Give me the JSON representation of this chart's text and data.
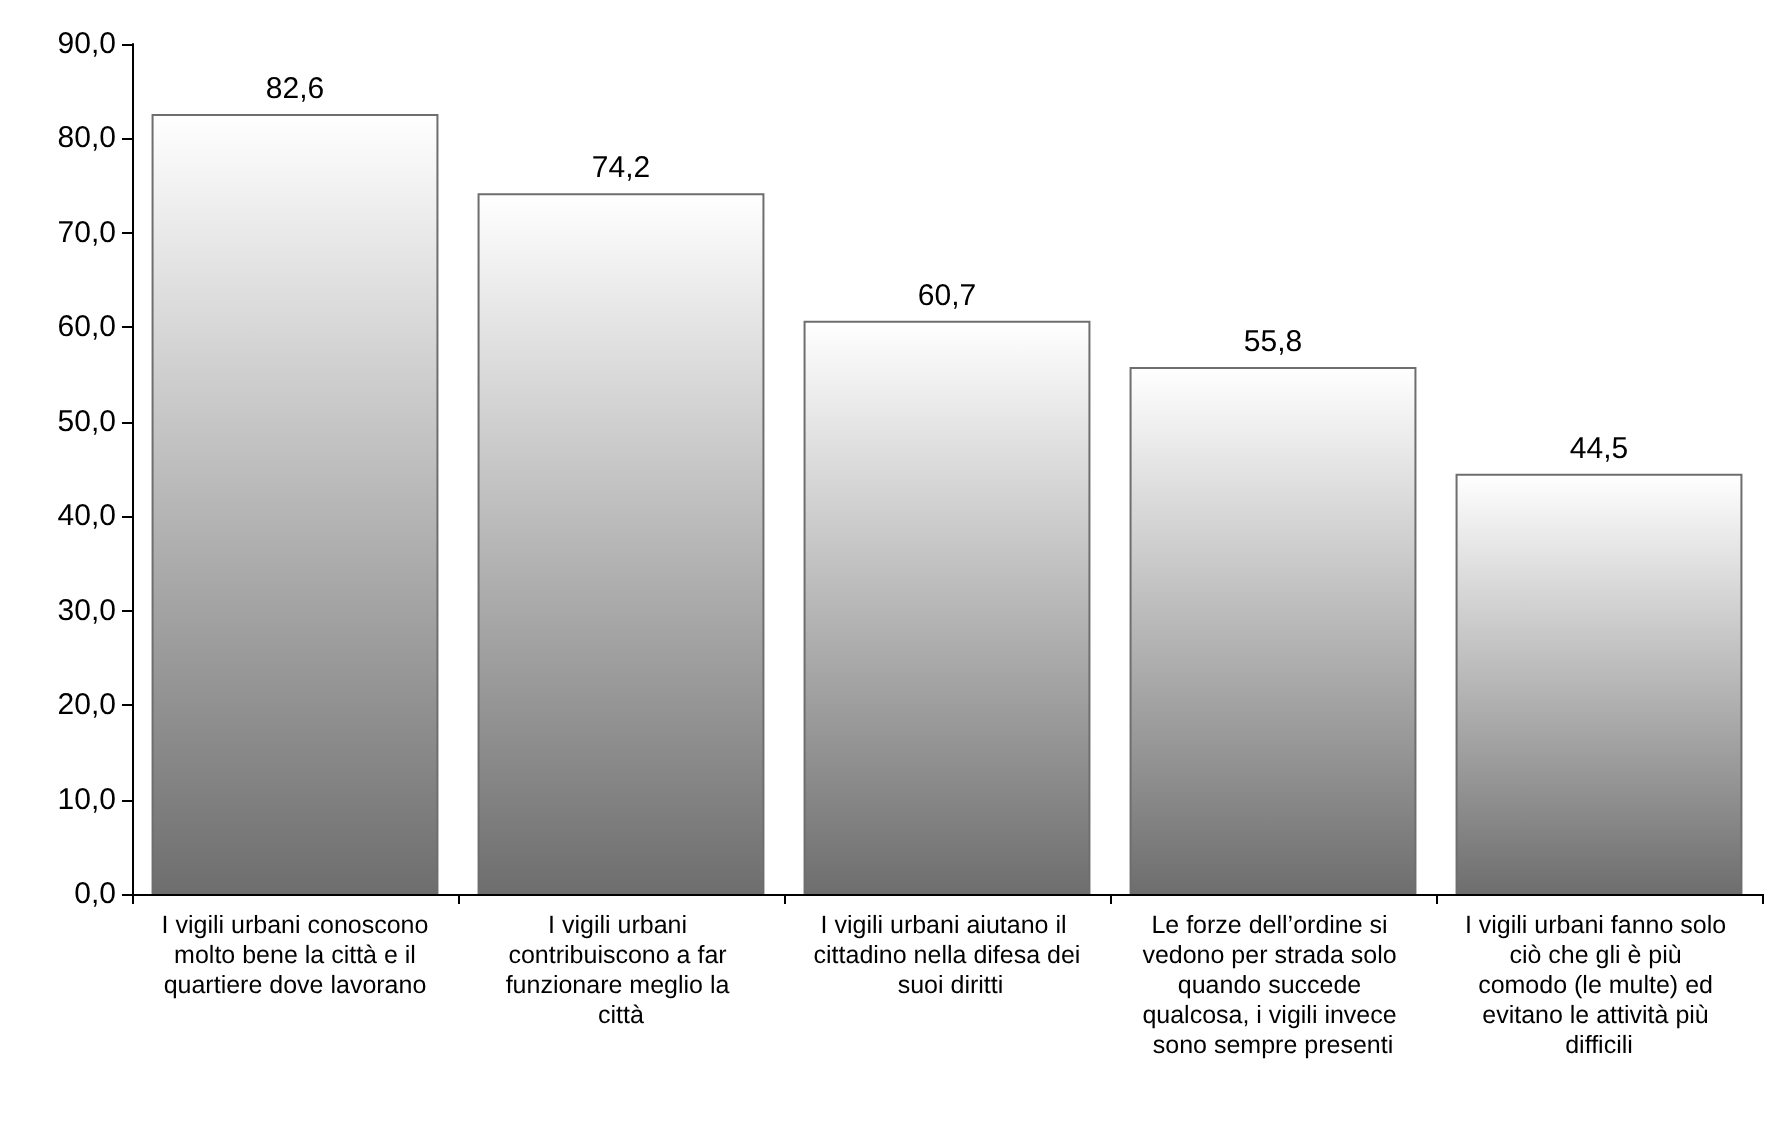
{
  "chart_data": {
    "type": "bar",
    "categories": [
      "I vigili urbani conoscono molto bene la città e il quartiere dove lavorano",
      "I vigili urbani contribuiscono a far funzionare meglio la città",
      "I vigili urbani aiutano il cittadino nella difesa dei suoi diritti",
      "Le forze dell’ordine si vedono per strada solo quando succede qualcosa, i vigili invece sono sempre presenti",
      "I vigili urbani fanno solo ciò che gli è più comodo (le multe) ed evitano le attività più difficili"
    ],
    "values": [
      82.6,
      74.2,
      60.7,
      55.8,
      44.5
    ],
    "value_labels": [
      "82,6",
      "74,2",
      "60,7",
      "55,8",
      "44,5"
    ],
    "color": "#6e6e6e",
    "ylim": [
      0,
      90
    ],
    "yticks": [
      {
        "value": 0,
        "label": "0,0"
      },
      {
        "value": 10,
        "label": "10,0"
      },
      {
        "value": 20,
        "label": "20,0"
      },
      {
        "value": 30,
        "label": "30,0"
      },
      {
        "value": 40,
        "label": "40,0"
      },
      {
        "value": 50,
        "label": "50,0"
      },
      {
        "value": 60,
        "label": "60,0"
      },
      {
        "value": 70,
        "label": "70,0"
      },
      {
        "value": 80,
        "label": "80,0"
      },
      {
        "value": 90,
        "label": "90,0"
      }
    ],
    "grid": false
  }
}
